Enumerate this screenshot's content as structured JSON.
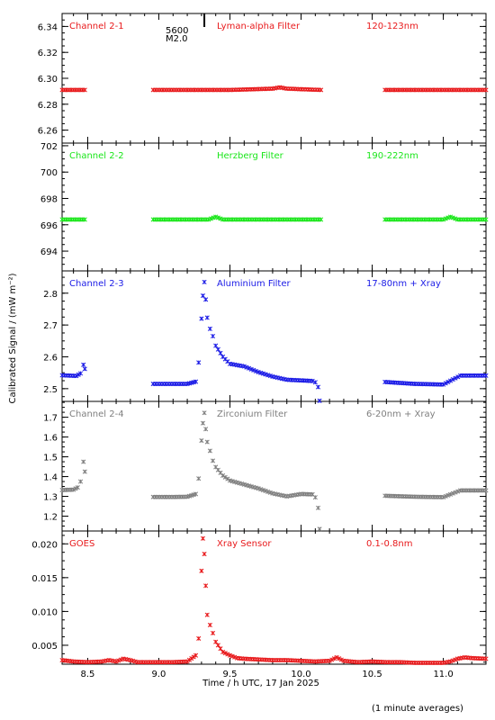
{
  "chart_data": {
    "type": "scatter",
    "xlabel": "Time / h UTC, 17 Jan 2025",
    "ylabel": "Calibrated Signal / (mW m⁻²)",
    "xlim": [
      8.32,
      11.3
    ],
    "xticks": [
      8.5,
      9.0,
      9.5,
      10.0,
      10.5,
      11.0
    ],
    "xtick_labels": [
      "8.5",
      "9.0",
      "9.5",
      "10.0",
      "10.5",
      "11.0"
    ],
    "footnote": "(1 minute averages)",
    "event_marker": {
      "x": 9.32,
      "label_top": "5600",
      "label_bottom": "M2.0"
    },
    "gaps": [
      [
        8.48,
        8.96
      ],
      [
        10.14,
        10.59
      ]
    ],
    "panels": [
      {
        "channel": "Channel 2-1",
        "filter": "Lyman-alpha Filter",
        "band": "120-123nm",
        "color": "#e8191b",
        "ylim": [
          6.25,
          6.35
        ],
        "yticks": [
          6.26,
          6.28,
          6.3,
          6.32,
          6.34
        ],
        "ytick_labels": [
          "6.26",
          "6.28",
          "6.30",
          "6.32",
          "6.34"
        ],
        "series": [
          {
            "x": [
              8.32,
              8.4,
              8.48
            ],
            "y": [
              6.291,
              6.291,
              6.291
            ]
          },
          {
            "x": [
              8.96,
              9.2,
              9.5,
              9.8,
              9.85,
              9.9,
              10.14
            ],
            "y": [
              6.291,
              6.291,
              6.291,
              6.292,
              6.293,
              6.292,
              6.291
            ]
          },
          {
            "x": [
              10.59,
              10.8,
              11.0,
              11.3
            ],
            "y": [
              6.291,
              6.291,
              6.291,
              6.291
            ]
          }
        ]
      },
      {
        "channel": "Channel 2-2",
        "filter": "Herzberg Filter",
        "band": "190-222nm",
        "color": "#19e619",
        "ylim": [
          692.5,
          702.2
        ],
        "yticks": [
          694,
          696,
          698,
          700,
          702
        ],
        "ytick_labels": [
          "694",
          "696",
          "698",
          "700",
          "702"
        ],
        "series": [
          {
            "x": [
              8.32,
              8.48
            ],
            "y": [
              696.4,
              696.4
            ]
          },
          {
            "x": [
              8.96,
              9.35,
              9.4,
              9.45,
              10.14
            ],
            "y": [
              696.4,
              696.4,
              696.6,
              696.4,
              696.4
            ]
          },
          {
            "x": [
              10.59,
              11.0,
              11.05,
              11.1,
              11.3
            ],
            "y": [
              696.4,
              696.4,
              696.6,
              696.4,
              696.4
            ]
          }
        ]
      },
      {
        "channel": "Channel 2-3",
        "filter": "Aluminium Filter",
        "band": "17-80nm + Xray",
        "color": "#1a1ae6",
        "ylim": [
          2.46,
          2.87
        ],
        "yticks": [
          2.5,
          2.6,
          2.7,
          2.8
        ],
        "ytick_labels": [
          "2.5",
          "2.6",
          "2.7",
          "2.8"
        ],
        "series": [
          {
            "x": [
              8.32,
              8.42,
              8.45,
              8.47,
              8.48
            ],
            "y": [
              2.542,
              2.54,
              2.548,
              2.575,
              2.562
            ]
          },
          {
            "x": [
              8.96,
              9.1,
              9.2,
              9.26,
              9.28,
              9.3,
              9.31,
              9.32,
              9.33,
              9.34,
              9.36,
              9.38,
              9.4,
              9.45,
              9.5,
              9.6,
              9.7,
              9.8,
              9.9,
              10.0,
              10.08,
              10.1,
              10.12,
              10.13
            ],
            "y": [
              2.515,
              2.515,
              2.515,
              2.522,
              2.582,
              2.72,
              2.792,
              2.835,
              2.78,
              2.723,
              2.688,
              2.665,
              2.635,
              2.6,
              2.578,
              2.57,
              2.552,
              2.538,
              2.528,
              2.526,
              2.524,
              2.52,
              2.505,
              2.462
            ]
          },
          {
            "x": [
              10.59,
              10.8,
              11.0,
              11.05,
              11.12,
              11.3
            ],
            "y": [
              2.521,
              2.515,
              2.513,
              2.525,
              2.541,
              2.541
            ]
          }
        ]
      },
      {
        "channel": "Channel 2-4",
        "filter": "Zirconium Filter",
        "band": "6-20nm + Xray",
        "color": "#7f7f7f",
        "ylim": [
          1.125,
          1.78
        ],
        "yticks": [
          1.2,
          1.3,
          1.4,
          1.5,
          1.6,
          1.7
        ],
        "ytick_labels": [
          "1.2",
          "1.3",
          "1.4",
          "1.5",
          "1.6",
          "1.7"
        ],
        "series": [
          {
            "x": [
              8.32,
              8.4,
              8.43,
              8.45,
              8.47,
              8.48
            ],
            "y": [
              1.332,
              1.334,
              1.345,
              1.375,
              1.475,
              1.425
            ]
          },
          {
            "x": [
              8.96,
              9.1,
              9.2,
              9.26,
              9.28,
              9.3,
              9.31,
              9.32,
              9.33,
              9.34,
              9.36,
              9.38,
              9.4,
              9.45,
              9.5,
              9.6,
              9.7,
              9.8,
              9.9,
              10.0,
              10.08,
              10.1,
              10.12,
              10.13
            ],
            "y": [
              1.297,
              1.297,
              1.298,
              1.312,
              1.39,
              1.582,
              1.67,
              1.722,
              1.64,
              1.575,
              1.53,
              1.48,
              1.448,
              1.405,
              1.38,
              1.36,
              1.34,
              1.315,
              1.3,
              1.312,
              1.31,
              1.295,
              1.242,
              1.135
            ]
          },
          {
            "x": [
              10.59,
              10.8,
              11.0,
              11.05,
              11.12,
              11.3
            ],
            "y": [
              1.303,
              1.298,
              1.296,
              1.31,
              1.33,
              1.33
            ]
          }
        ]
      },
      {
        "channel": "GOES",
        "filter": "Xray Sensor",
        "band": "0.1-0.8nm",
        "color": "#e8191b",
        "ylim": [
          0.0022,
          0.0219
        ],
        "yticks": [
          0.005,
          0.01,
          0.015,
          0.02
        ],
        "ytick_labels": [
          "0.005",
          "0.010",
          "0.015",
          "0.020"
        ],
        "series": [
          {
            "x": [
              8.32,
              8.4,
              8.5,
              8.6,
              8.65,
              8.7,
              8.75,
              8.8,
              8.85,
              8.9,
              9.0,
              9.1,
              9.2,
              9.26,
              9.28,
              9.3,
              9.31,
              9.32,
              9.33,
              9.34,
              9.36,
              9.38,
              9.4,
              9.45,
              9.5,
              9.55,
              9.6,
              9.7,
              9.8,
              9.9,
              10.0,
              10.1,
              10.2,
              10.25,
              10.3,
              10.4,
              10.5,
              10.6,
              10.7,
              10.8,
              10.9,
              11.0,
              11.05,
              11.1,
              11.15,
              11.2,
              11.3
            ],
            "y": [
              0.0028,
              0.0026,
              0.0025,
              0.0026,
              0.0028,
              0.0026,
              0.003,
              0.0028,
              0.0025,
              0.0025,
              0.0025,
              0.0025,
              0.0026,
              0.0035,
              0.006,
              0.016,
              0.0208,
              0.0185,
              0.0138,
              0.0095,
              0.008,
              0.0068,
              0.0055,
              0.004,
              0.0035,
              0.0031,
              0.003,
              0.0029,
              0.0028,
              0.0028,
              0.0027,
              0.0026,
              0.0027,
              0.0032,
              0.0027,
              0.0025,
              0.0026,
              0.0025,
              0.0025,
              0.0024,
              0.0024,
              0.0024,
              0.0026,
              0.003,
              0.0032,
              0.0031,
              0.003
            ]
          }
        ]
      }
    ]
  }
}
